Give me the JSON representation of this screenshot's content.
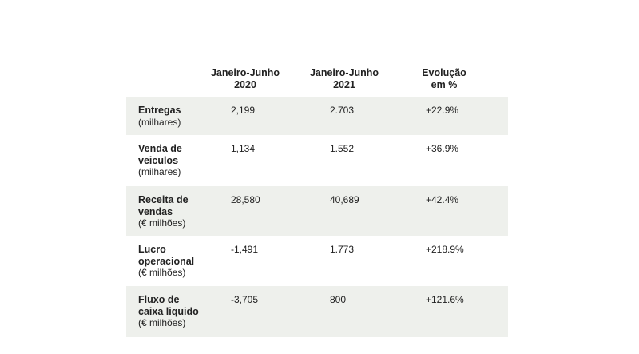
{
  "table": {
    "headers": [
      {
        "line1": "Janeiro-Junho",
        "line2": "2020"
      },
      {
        "line1": "Janeiro-Junho",
        "line2": "2021"
      },
      {
        "line1": "Evolução",
        "line2": "em %"
      }
    ],
    "rows": [
      {
        "label": "Entregas",
        "label2": "",
        "unit": "(milhares)",
        "v2020": "2,199",
        "v2021": "2.703",
        "change": "+22.9%"
      },
      {
        "label": "Venda de",
        "label2": "veiculos",
        "unit": "(milhares)",
        "v2020": "1,134",
        "v2021": "1.552",
        "change": "+36.9%"
      },
      {
        "label": "Receita de",
        "label2": "vendas",
        "unit": "(€ milhões)",
        "v2020": "28,580",
        "v2021": "40,689",
        "change": "+42.4%"
      },
      {
        "label": "Lucro",
        "label2": "operacional",
        "unit": "(€ milhões)",
        "v2020": "-1,491",
        "v2021": "1.773",
        "change": "+218.9%"
      },
      {
        "label": "Fluxo de",
        "label2": "caixa liquido",
        "unit": "(€ milhões)",
        "v2020": "-3,705",
        "v2021": "800",
        "change": "+121.6%"
      }
    ]
  }
}
